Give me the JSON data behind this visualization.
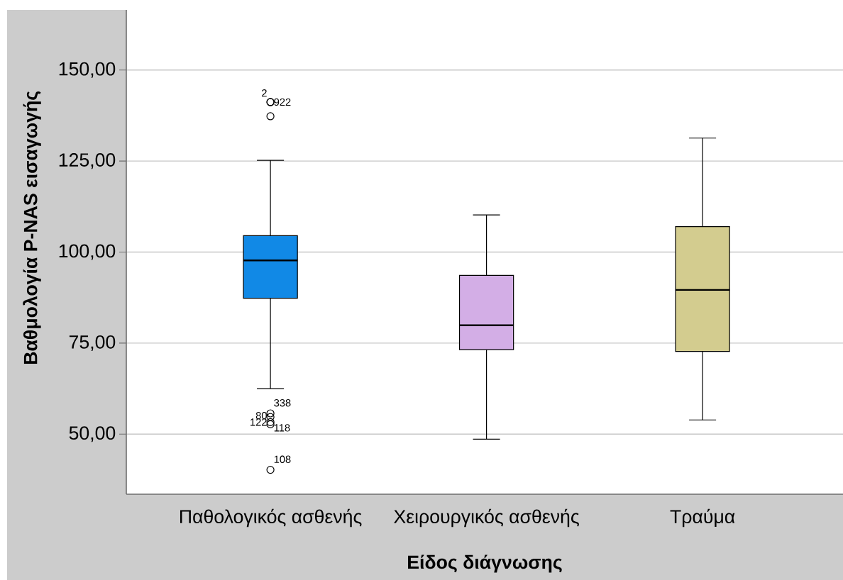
{
  "chart_data": {
    "type": "box",
    "xlabel": "Είδος διάγνωσης",
    "ylabel": "Βαθμολογία P-NAS εισαγωγής",
    "categories": [
      "Παθολογικός ασθενής",
      "Χειρουργικός ασθενής",
      "Τραύμα"
    ],
    "colors": [
      "#1189e6",
      "#d3aee6",
      "#d3cc8f"
    ],
    "boxes": [
      {
        "low": 62.5,
        "q1": 87.3,
        "median": 97.7,
        "q3": 104.5,
        "high": 125.2,
        "outliers": [
          141.2,
          141.2,
          137.3,
          55.7,
          54.7,
          53.3,
          52.7,
          40.2
        ]
      },
      {
        "low": 48.6,
        "q1": 73.2,
        "median": 79.9,
        "q3": 93.6,
        "high": 110.2
      },
      {
        "low": 53.9,
        "q1": 72.7,
        "median": 89.6,
        "q3": 107.0,
        "high": 131.3
      }
    ],
    "ylim": [
      33.5,
      166.5
    ],
    "yticks": [
      {
        "value": 50,
        "label": "50,00"
      },
      {
        "value": 75,
        "label": "75,00"
      },
      {
        "value": 100,
        "label": "100,00"
      },
      {
        "value": 125,
        "label": "125,00"
      },
      {
        "value": 150,
        "label": "150,00"
      }
    ],
    "grid": "y",
    "marker": "circle",
    "annotations": [
      "2",
      "922",
      "338",
      "80",
      "122",
      "118",
      "108"
    ]
  }
}
